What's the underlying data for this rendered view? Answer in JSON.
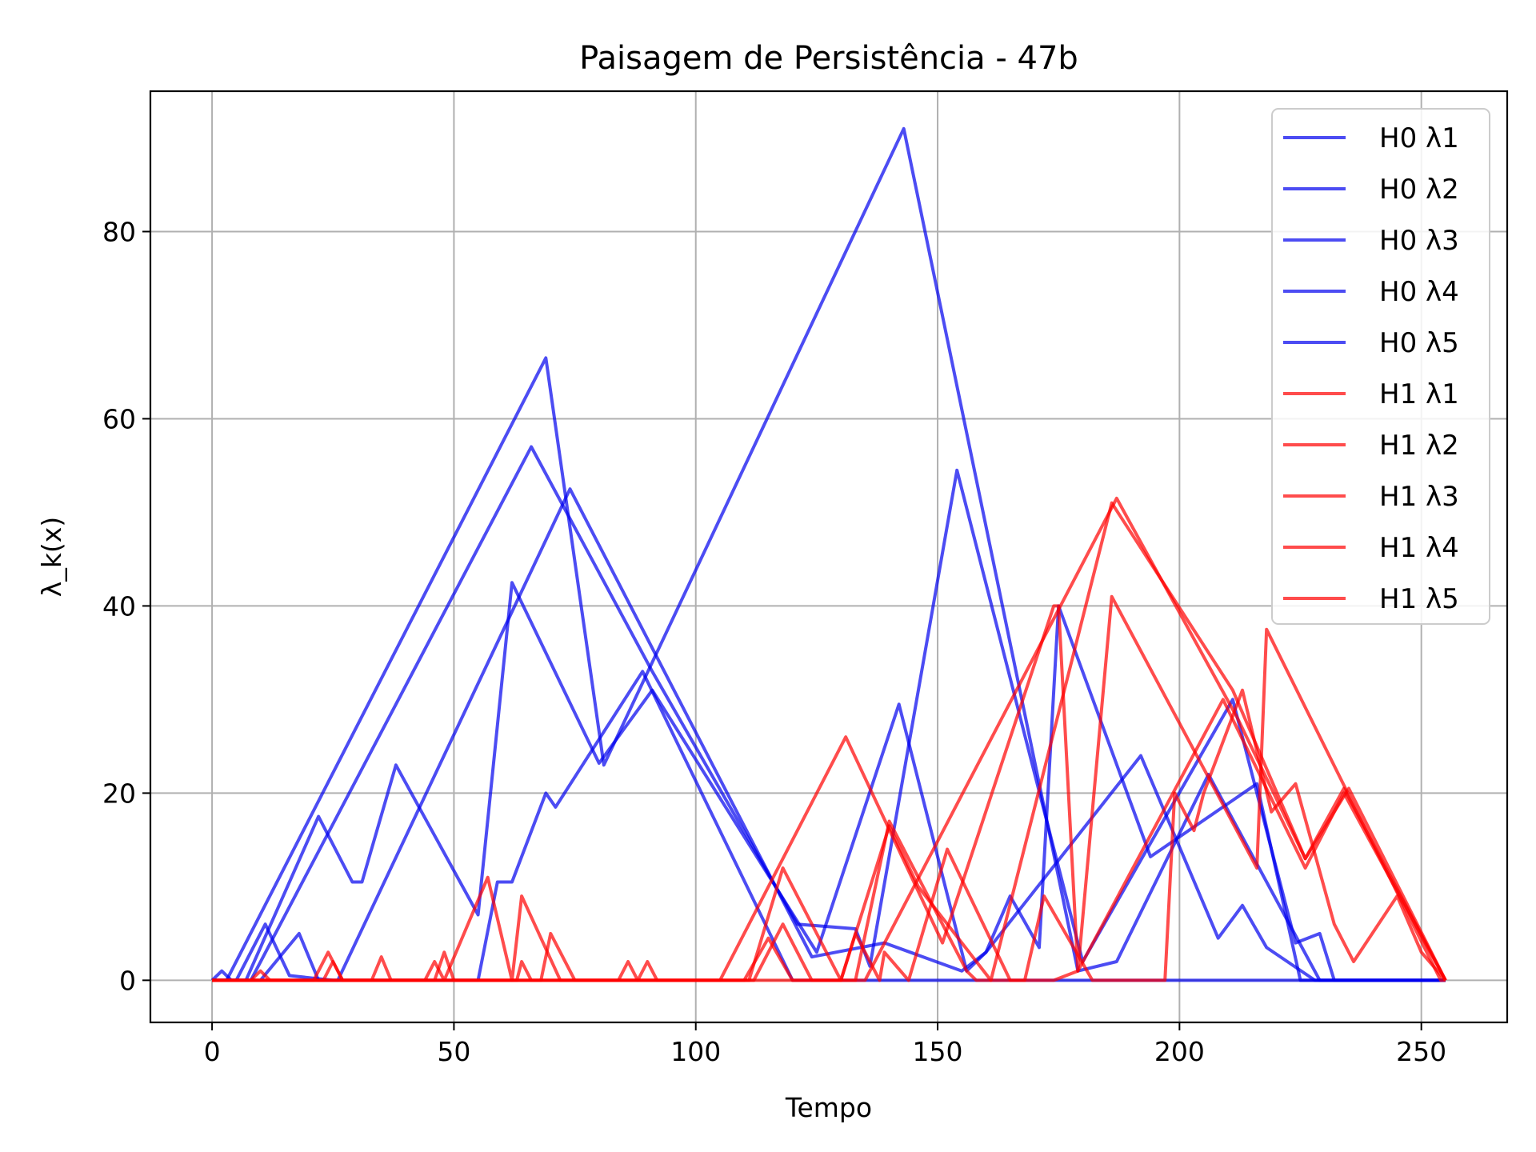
{
  "chart_data": {
    "type": "line",
    "title": "Paisagem de Persistência - 47b",
    "xlabel": "Tempo",
    "ylabel": "λ_k(x)",
    "xlim": [
      -12.75,
      267.75
    ],
    "ylim": [
      -4.5,
      95
    ],
    "xticks": [
      0,
      50,
      100,
      150,
      200,
      250
    ],
    "yticks": [
      0,
      20,
      40,
      60,
      80
    ],
    "grid": true,
    "legend_position": "top-right",
    "colors": {
      "H0": "#0000ee",
      "H1": "#ff0000"
    },
    "series": [
      {
        "name": "H0 λ1",
        "color": "#0000ee",
        "points": [
          [
            0,
            0
          ],
          [
            3,
            0
          ],
          [
            69,
            66.5
          ],
          [
            81,
            23
          ],
          [
            143,
            91
          ],
          [
            179,
            1
          ],
          [
            187,
            2
          ],
          [
            206,
            22
          ],
          [
            229,
            0
          ],
          [
            255,
            0
          ]
        ]
      },
      {
        "name": "H0 λ2",
        "color": "#0000ee",
        "points": [
          [
            0,
            0
          ],
          [
            2,
            1
          ],
          [
            4,
            0
          ],
          [
            8,
            0
          ],
          [
            66,
            57
          ],
          [
            91,
            33
          ],
          [
            121,
            6
          ],
          [
            133,
            5.5
          ],
          [
            136,
            1.5
          ],
          [
            154,
            54.5
          ],
          [
            180,
            2
          ],
          [
            211,
            30
          ],
          [
            224,
            4
          ],
          [
            229,
            5
          ],
          [
            232,
            0
          ],
          [
            255,
            0
          ]
        ]
      },
      {
        "name": "H0 λ3",
        "color": "#0000ee",
        "points": [
          [
            0,
            0
          ],
          [
            7,
            0
          ],
          [
            22,
            17.5
          ],
          [
            29,
            10.5
          ],
          [
            31,
            10.5
          ],
          [
            38,
            23
          ],
          [
            55,
            7
          ],
          [
            62,
            42.5
          ],
          [
            80,
            23.2
          ],
          [
            91,
            31
          ],
          [
            125,
            3
          ],
          [
            142,
            29.5
          ],
          [
            156,
            1
          ],
          [
            160,
            3
          ],
          [
            165,
            9
          ],
          [
            171,
            3.5
          ],
          [
            175,
            40
          ],
          [
            194,
            13.2
          ],
          [
            216,
            21
          ],
          [
            225,
            0
          ],
          [
            255,
            0
          ]
        ]
      },
      {
        "name": "H0 λ4",
        "color": "#0000ee",
        "points": [
          [
            0,
            0
          ],
          [
            10,
            0
          ],
          [
            18,
            5
          ],
          [
            22,
            0
          ],
          [
            26,
            0
          ],
          [
            74,
            52.5
          ],
          [
            124,
            2.5
          ],
          [
            139,
            4
          ],
          [
            155,
            1
          ],
          [
            160,
            3
          ],
          [
            192,
            24
          ],
          [
            208,
            4.5
          ],
          [
            213,
            8
          ],
          [
            218,
            3.5
          ],
          [
            228,
            0
          ],
          [
            255,
            0
          ]
        ]
      },
      {
        "name": "H0 λ5",
        "color": "#0000ee",
        "points": [
          [
            0,
            0
          ],
          [
            5,
            0
          ],
          [
            11,
            6
          ],
          [
            16,
            0.5
          ],
          [
            25,
            0
          ],
          [
            55,
            0
          ],
          [
            59,
            10.5
          ],
          [
            62,
            10.5
          ],
          [
            69,
            20
          ],
          [
            71,
            18.5
          ],
          [
            89,
            33
          ],
          [
            120,
            0
          ],
          [
            255,
            0
          ]
        ]
      },
      {
        "name": "H1 λ1",
        "color": "#ff0000",
        "points": [
          [
            0,
            0
          ],
          [
            8,
            0
          ],
          [
            10,
            1
          ],
          [
            12,
            0
          ],
          [
            135,
            0
          ],
          [
            187,
            51.5
          ],
          [
            212,
            28
          ],
          [
            226,
            13
          ],
          [
            234,
            20.5
          ],
          [
            255,
            0
          ]
        ]
      },
      {
        "name": "H1 λ2",
        "color": "#ff0000",
        "points": [
          [
            0,
            0
          ],
          [
            21,
            0
          ],
          [
            24,
            3
          ],
          [
            27,
            0
          ],
          [
            33,
            0
          ],
          [
            35,
            2.5
          ],
          [
            37,
            0
          ],
          [
            44,
            0
          ],
          [
            46,
            2
          ],
          [
            48,
            0
          ],
          [
            57,
            11
          ],
          [
            62,
            0
          ],
          [
            64,
            9
          ],
          [
            72,
            0
          ],
          [
            111,
            0
          ],
          [
            118,
            12
          ],
          [
            130,
            0
          ],
          [
            140,
            16.5
          ],
          [
            146,
            10
          ],
          [
            161,
            0
          ],
          [
            186,
            51
          ],
          [
            211,
            31
          ],
          [
            226,
            13
          ],
          [
            235,
            20.5
          ],
          [
            255,
            0
          ]
        ]
      },
      {
        "name": "H1 λ3",
        "color": "#ff0000",
        "points": [
          [
            0,
            0
          ],
          [
            105,
            0
          ],
          [
            131,
            26
          ],
          [
            151,
            4
          ],
          [
            174,
            40
          ],
          [
            175,
            40
          ],
          [
            179,
            1
          ],
          [
            186,
            41
          ],
          [
            216,
            12
          ],
          [
            218,
            37.5
          ],
          [
            254,
            0
          ],
          [
            255,
            0
          ]
        ]
      },
      {
        "name": "H1 λ4",
        "color": "#ff0000",
        "points": [
          [
            0,
            0
          ],
          [
            46,
            0
          ],
          [
            48,
            3
          ],
          [
            50,
            0
          ],
          [
            84,
            0
          ],
          [
            86,
            2
          ],
          [
            88,
            0
          ],
          [
            90,
            2
          ],
          [
            92,
            0
          ],
          [
            110,
            0
          ],
          [
            115,
            4.5
          ],
          [
            120,
            0
          ],
          [
            133,
            0
          ],
          [
            140,
            17
          ],
          [
            156,
            1
          ],
          [
            158,
            0
          ],
          [
            174,
            0
          ],
          [
            179,
            1
          ],
          [
            209,
            30
          ],
          [
            226,
            12
          ],
          [
            234,
            20
          ],
          [
            255,
            0
          ]
        ]
      },
      {
        "name": "H1 λ5",
        "color": "#ff0000",
        "points": [
          [
            0,
            0
          ],
          [
            23,
            0
          ],
          [
            25,
            2
          ],
          [
            27,
            0
          ],
          [
            63,
            0
          ],
          [
            64,
            2
          ],
          [
            66,
            0
          ],
          [
            68,
            0
          ],
          [
            70,
            5
          ],
          [
            75,
            0
          ],
          [
            112,
            0
          ],
          [
            118,
            6
          ],
          [
            124,
            0
          ],
          [
            130,
            0
          ],
          [
            133,
            5
          ],
          [
            138,
            0
          ],
          [
            139,
            3
          ],
          [
            144,
            0
          ],
          [
            152,
            14
          ],
          [
            165,
            0
          ],
          [
            168,
            0
          ],
          [
            172,
            9
          ],
          [
            182,
            0
          ],
          [
            197,
            0
          ],
          [
            199,
            20
          ],
          [
            203,
            16
          ],
          [
            205,
            20
          ],
          [
            213,
            31
          ],
          [
            219,
            18
          ],
          [
            224,
            21
          ],
          [
            232,
            6
          ],
          [
            236,
            2
          ],
          [
            245,
            9
          ],
          [
            250,
            3
          ],
          [
            255,
            0
          ]
        ]
      }
    ]
  }
}
